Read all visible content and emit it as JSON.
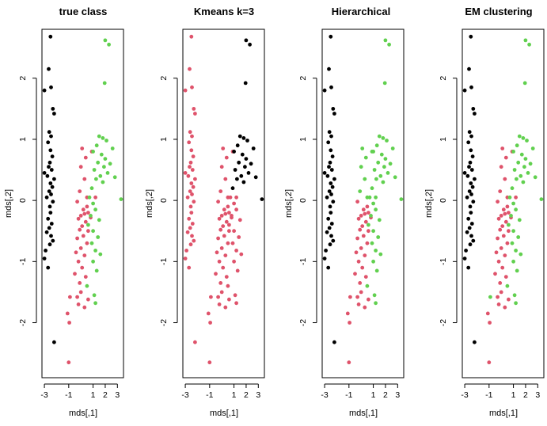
{
  "colors": {
    "black": "#000000",
    "red": "#DF536B",
    "green": "#61D04F"
  },
  "chart_data": [
    {
      "type": "scatter",
      "title": "true class",
      "xlabel": "mds[,1]",
      "ylabel": "mds[,2]",
      "xlim": [
        -3.2,
        3.5
      ],
      "ylim": [
        -2.9,
        2.8
      ],
      "xticks": [
        -3,
        -1,
        1,
        2,
        3
      ],
      "yticks": [
        -2,
        -1,
        0,
        1,
        2
      ],
      "color_key": "true"
    },
    {
      "type": "scatter",
      "title": "Kmeans k=3",
      "xlabel": "mds[,1]",
      "ylabel": "mds[,2]",
      "xlim": [
        -3.2,
        3.5
      ],
      "ylim": [
        -2.9,
        2.8
      ],
      "xticks": [
        -3,
        -1,
        1,
        2,
        3
      ],
      "yticks": [
        -2,
        -1,
        0,
        1,
        2
      ],
      "color_key": "kmeans"
    },
    {
      "type": "scatter",
      "title": "Hierarchical",
      "xlabel": "mds[,1]",
      "ylabel": "mds[,2]",
      "xlim": [
        -3.2,
        3.5
      ],
      "ylim": [
        -2.9,
        2.8
      ],
      "xticks": [
        -3,
        -1,
        1,
        2,
        3
      ],
      "yticks": [
        -2,
        -1,
        0,
        1,
        2
      ],
      "color_key": "hier"
    },
    {
      "type": "scatter",
      "title": "EM clustering",
      "xlabel": "mds[,1]",
      "ylabel": "mds[,2]",
      "xlim": [
        -3.2,
        3.5
      ],
      "ylim": [
        -2.9,
        2.8
      ],
      "xticks": [
        -3,
        -1,
        1,
        2,
        3
      ],
      "yticks": [
        -2,
        -1,
        0,
        1,
        2
      ],
      "color_key": "em"
    }
  ],
  "points": [
    [
      -2.5,
      2.68,
      0,
      1,
      0,
      0
    ],
    [
      -2.65,
      2.15,
      0,
      1,
      0,
      0
    ],
    [
      -3.0,
      1.8,
      0,
      1,
      0,
      0
    ],
    [
      -2.45,
      1.85,
      0,
      1,
      0,
      0
    ],
    [
      -2.3,
      1.5,
      0,
      1,
      0,
      0
    ],
    [
      -2.2,
      1.42,
      0,
      1,
      0,
      0
    ],
    [
      -2.6,
      1.12,
      0,
      1,
      0,
      0
    ],
    [
      -2.45,
      1.05,
      0,
      1,
      0,
      0
    ],
    [
      -2.7,
      0.95,
      0,
      1,
      0,
      0
    ],
    [
      -2.5,
      0.82,
      0,
      1,
      0,
      0
    ],
    [
      -2.35,
      0.72,
      0,
      1,
      0,
      0
    ],
    [
      -2.55,
      0.62,
      0,
      1,
      0,
      0
    ],
    [
      -2.65,
      0.55,
      0,
      1,
      0,
      0
    ],
    [
      -2.4,
      0.5,
      0,
      1,
      0,
      0
    ],
    [
      -3.0,
      0.45,
      0,
      1,
      0,
      0
    ],
    [
      -2.75,
      0.4,
      0,
      1,
      0,
      0
    ],
    [
      -2.2,
      0.35,
      0,
      1,
      0,
      0
    ],
    [
      -2.5,
      0.28,
      0,
      1,
      0,
      0
    ],
    [
      -2.35,
      0.22,
      0,
      1,
      0,
      0
    ],
    [
      -2.6,
      0.15,
      0,
      1,
      0,
      0
    ],
    [
      -2.45,
      0.1,
      0,
      1,
      0,
      0
    ],
    [
      -2.8,
      0.05,
      0,
      1,
      0,
      0
    ],
    [
      -2.3,
      -0.02,
      0,
      1,
      0,
      0
    ],
    [
      -2.55,
      -0.1,
      0,
      1,
      0,
      0
    ],
    [
      -2.5,
      -0.2,
      0,
      1,
      0,
      0
    ],
    [
      -2.7,
      -0.3,
      0,
      1,
      0,
      0
    ],
    [
      -2.4,
      -0.38,
      0,
      1,
      0,
      0
    ],
    [
      -2.6,
      -0.45,
      0,
      1,
      0,
      0
    ],
    [
      -2.8,
      -0.52,
      0,
      1,
      0,
      0
    ],
    [
      -2.45,
      -0.58,
      0,
      1,
      0,
      0
    ],
    [
      -2.3,
      -0.66,
      0,
      1,
      0,
      0
    ],
    [
      -2.55,
      -0.72,
      0,
      1,
      0,
      0
    ],
    [
      -2.9,
      -0.82,
      0,
      1,
      0,
      0
    ],
    [
      -3.0,
      -0.95,
      0,
      1,
      0,
      0
    ],
    [
      -2.7,
      -1.1,
      0,
      1,
      0,
      0
    ],
    [
      -2.2,
      -2.32,
      0,
      1,
      0,
      0
    ],
    [
      -0.3,
      -0.02,
      1,
      1,
      1,
      1
    ],
    [
      0.5,
      -0.1,
      1,
      1,
      1,
      1
    ],
    [
      0.2,
      -0.15,
      1,
      1,
      1,
      1
    ],
    [
      0.6,
      -0.2,
      1,
      1,
      1,
      1
    ],
    [
      0.0,
      -0.25,
      1,
      1,
      1,
      1
    ],
    [
      0.3,
      -0.22,
      1,
      1,
      1,
      1
    ],
    [
      -0.2,
      -0.3,
      1,
      1,
      1,
      1
    ],
    [
      0.8,
      -0.28,
      1,
      1,
      1,
      1
    ],
    [
      0.4,
      -0.35,
      1,
      1,
      1,
      1
    ],
    [
      0.1,
      -0.42,
      1,
      1,
      1,
      1
    ],
    [
      -0.1,
      -0.48,
      1,
      1,
      1,
      1
    ],
    [
      0.6,
      -0.5,
      1,
      1,
      1,
      1
    ],
    [
      0.2,
      -0.58,
      1,
      1,
      1,
      1
    ],
    [
      -0.3,
      -0.62,
      1,
      1,
      1,
      1
    ],
    [
      0.5,
      -0.7,
      1,
      1,
      1,
      1
    ],
    [
      0.0,
      -0.78,
      1,
      1,
      1,
      1
    ],
    [
      -0.4,
      -0.85,
      1,
      1,
      1,
      1
    ],
    [
      0.3,
      -0.9,
      1,
      1,
      1,
      1
    ],
    [
      -0.2,
      -1.0,
      1,
      1,
      1,
      1
    ],
    [
      0.1,
      -1.1,
      1,
      1,
      1,
      1
    ],
    [
      -0.5,
      -1.2,
      1,
      1,
      1,
      1
    ],
    [
      0.4,
      -1.25,
      1,
      1,
      1,
      1
    ],
    [
      -0.1,
      -1.35,
      1,
      1,
      1,
      1
    ],
    [
      0.0,
      -1.5,
      1,
      1,
      1,
      1
    ],
    [
      -0.3,
      -1.58,
      1,
      1,
      1,
      1
    ],
    [
      0.6,
      -1.62,
      1,
      1,
      1,
      1
    ],
    [
      -0.2,
      -1.7,
      1,
      1,
      1,
      1
    ],
    [
      0.3,
      -1.75,
      1,
      1,
      1,
      1
    ],
    [
      -0.9,
      -1.58,
      1,
      1,
      1,
      2
    ],
    [
      -1.1,
      -1.85,
      1,
      1,
      1,
      1
    ],
    [
      -0.95,
      -2.0,
      1,
      1,
      1,
      1
    ],
    [
      -1.0,
      -2.65,
      1,
      1,
      1,
      1
    ],
    [
      0.1,
      0.85,
      1,
      1,
      2,
      1
    ],
    [
      0.0,
      0.55,
      1,
      1,
      2,
      1
    ],
    [
      0.4,
      0.7,
      1,
      1,
      2,
      1
    ],
    [
      0.9,
      0.8,
      1,
      1,
      2,
      1
    ],
    [
      0.3,
      0.35,
      1,
      1,
      2,
      1
    ],
    [
      0.5,
      0.05,
      1,
      1,
      2,
      1
    ],
    [
      1.2,
      0.05,
      1,
      1,
      2,
      1
    ],
    [
      -0.1,
      0.15,
      1,
      1,
      2,
      1
    ],
    [
      1.5,
      1.05,
      2,
      0,
      2,
      2
    ],
    [
      1.8,
      1.02,
      2,
      0,
      2,
      2
    ],
    [
      2.1,
      0.98,
      2,
      0,
      2,
      2
    ],
    [
      1.3,
      0.9,
      2,
      0,
      2,
      2
    ],
    [
      2.6,
      0.85,
      2,
      0,
      2,
      2
    ],
    [
      1.0,
      0.8,
      2,
      0,
      2,
      2
    ],
    [
      1.7,
      0.75,
      2,
      0,
      2,
      2
    ],
    [
      2.0,
      0.68,
      2,
      0,
      2,
      2
    ],
    [
      1.4,
      0.62,
      2,
      0,
      2,
      2
    ],
    [
      2.4,
      0.6,
      2,
      0,
      2,
      2
    ],
    [
      1.9,
      0.55,
      2,
      0,
      2,
      2
    ],
    [
      1.1,
      0.5,
      2,
      0,
      2,
      2
    ],
    [
      2.2,
      0.45,
      2,
      0,
      2,
      2
    ],
    [
      1.6,
      0.4,
      2,
      0,
      2,
      2
    ],
    [
      1.25,
      0.35,
      2,
      0,
      2,
      2
    ],
    [
      2.8,
      0.38,
      2,
      0,
      2,
      2
    ],
    [
      1.8,
      0.3,
      2,
      0,
      2,
      2
    ],
    [
      3.3,
      0.02,
      2,
      0,
      2,
      2
    ],
    [
      2.0,
      2.62,
      2,
      0,
      2,
      2
    ],
    [
      2.3,
      2.55,
      2,
      0,
      2,
      2
    ],
    [
      1.95,
      1.92,
      2,
      0,
      2,
      2
    ],
    [
      0.9,
      0.2,
      2,
      0,
      2,
      2
    ],
    [
      0.7,
      0.05,
      2,
      1,
      2,
      2
    ],
    [
      1.0,
      -0.05,
      2,
      1,
      2,
      2
    ],
    [
      1.2,
      -0.15,
      2,
      1,
      2,
      2
    ],
    [
      0.8,
      -0.25,
      2,
      1,
      2,
      2
    ],
    [
      1.5,
      -0.32,
      2,
      1,
      2,
      2
    ],
    [
      0.6,
      -0.4,
      2,
      1,
      2,
      2
    ],
    [
      1.0,
      -0.5,
      2,
      1,
      2,
      2
    ],
    [
      1.4,
      -0.6,
      2,
      1,
      2,
      2
    ],
    [
      0.9,
      -0.7,
      2,
      1,
      2,
      2
    ],
    [
      1.2,
      -0.82,
      2,
      1,
      2,
      2
    ],
    [
      1.6,
      -0.88,
      2,
      1,
      2,
      2
    ],
    [
      1.0,
      -1.0,
      2,
      1,
      2,
      2
    ],
    [
      1.3,
      -1.15,
      2,
      1,
      2,
      2
    ],
    [
      0.5,
      -1.4,
      2,
      1,
      2,
      2
    ],
    [
      1.1,
      -1.55,
      2,
      1,
      2,
      2
    ],
    [
      1.2,
      -1.68,
      2,
      1,
      2,
      2
    ]
  ]
}
